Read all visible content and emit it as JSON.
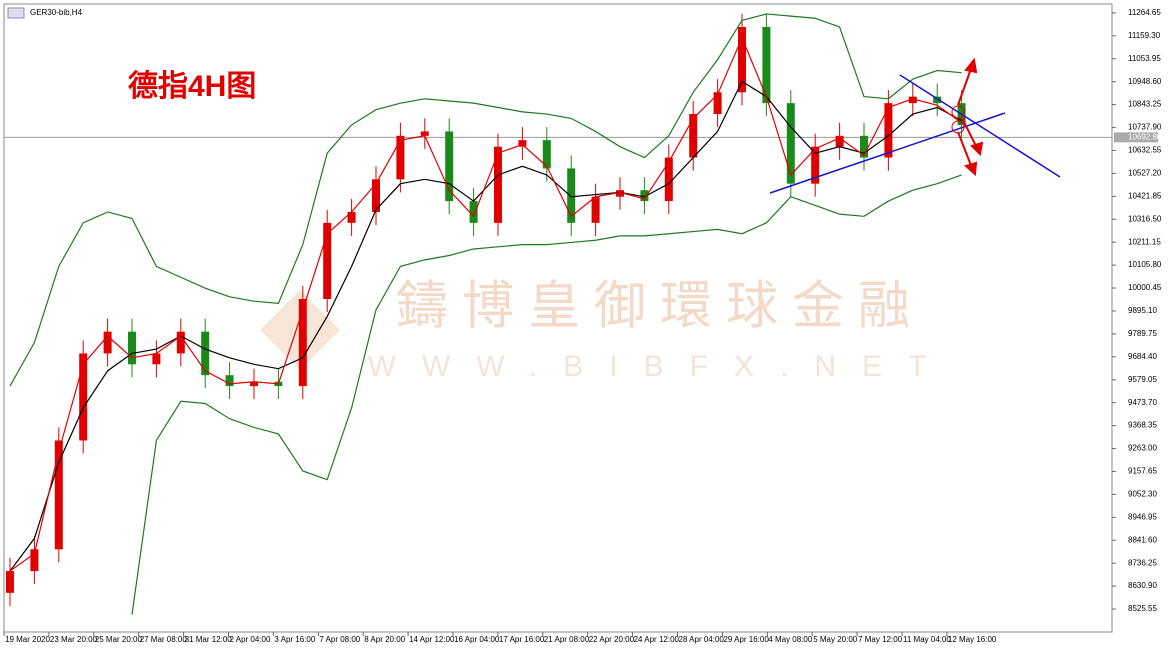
{
  "chart_data": {
    "type": "candlestick",
    "title": "GER30-bib,H4",
    "annotation": "德指4H图",
    "watermark": "鑄博皇御環球金融",
    "watermark_url": "WWW.BIBFX.NET",
    "up_color": "#e00000",
    "down_color": "#1a8a1a",
    "ylim": [
      8420,
      11301
    ],
    "yticks": [
      {
        "value": 11264.65,
        "label": "11264.65"
      },
      {
        "value": 11159.3,
        "label": "11159.30"
      },
      {
        "value": 11053.95,
        "label": "11053.95"
      },
      {
        "value": 10948.6,
        "label": "10948.60"
      },
      {
        "value": 10843.25,
        "label": "10843.25"
      },
      {
        "value": 10737.9,
        "label": "10737.90"
      },
      {
        "value": 10632.55,
        "label": "10632.55"
      },
      {
        "value": 10527.2,
        "label": "10527.20"
      },
      {
        "value": 10421.85,
        "label": "10421.85"
      },
      {
        "value": 10316.5,
        "label": "10316.50"
      },
      {
        "value": 10211.15,
        "label": "10211.15"
      },
      {
        "value": 10105.8,
        "label": "10105.80"
      },
      {
        "value": 10000.45,
        "label": "10000.45"
      },
      {
        "value": 9895.1,
        "label": "9895.10"
      },
      {
        "value": 9789.75,
        "label": "9789.75"
      },
      {
        "value": 9684.4,
        "label": "9684.40"
      },
      {
        "value": 9579.05,
        "label": "9579.05"
      },
      {
        "value": 9473.7,
        "label": "9473.70"
      },
      {
        "value": 9368.35,
        "label": "9368.35"
      },
      {
        "value": 9263,
        "label": "9263.00"
      },
      {
        "value": 9157.65,
        "label": "9157.65"
      },
      {
        "value": 9052.3,
        "label": "9052.30"
      },
      {
        "value": 8946.95,
        "label": "8946.95"
      },
      {
        "value": 8841.6,
        "label": "8841.60"
      },
      {
        "value": 8736.25,
        "label": "8736.25"
      },
      {
        "value": 8630.9,
        "label": "8630.90"
      },
      {
        "value": 8525.55,
        "label": "8525.55"
      }
    ],
    "time_labels": [
      "19 Mar 2020",
      "23 Mar 20:00",
      "25 Mar 20:00",
      "27 Mar 08:00",
      "31 Mar 12:00",
      "2 Apr 04:00",
      "3 Apr 16:00",
      "7 Apr 08:00",
      "8 Apr 20:00",
      "14 Apr 12:00",
      "16 Apr 04:00",
      "17 Apr 16:00",
      "21 Apr 08:00",
      "22 Apr 20:00",
      "24 Apr 12:00",
      "28 Apr 04:00",
      "29 Apr 16:00",
      "4 May 08:00",
      "5 May 20:00",
      "7 May 12:00",
      "11 May 04:00",
      "12 May 16:00"
    ],
    "current_price": 10692.8,
    "current_price_label": "10692.80",
    "open": [
      8600,
      8700,
      8800,
      9300,
      9700,
      9800,
      9650,
      9700,
      9800,
      9600,
      9550,
      9570,
      9550,
      9950,
      10300,
      10350,
      10500,
      10700,
      10720,
      10400,
      10300,
      10650,
      10680,
      10550,
      10300,
      10420,
      10450,
      10400,
      10600,
      10800,
      10900,
      11200,
      10850,
      10480,
      10650,
      10700,
      10600,
      10850,
      10880,
      10850
    ],
    "high": [
      8760,
      8860,
      9360,
      9760,
      9860,
      9860,
      9760,
      9860,
      9860,
      9660,
      9630,
      9630,
      10010,
      10360,
      10410,
      10560,
      10760,
      10780,
      10780,
      10460,
      10710,
      10740,
      10740,
      10610,
      10480,
      10510,
      10510,
      10660,
      10860,
      10960,
      11260,
      11260,
      10910,
      10710,
      10760,
      10760,
      10910,
      10940,
      10940,
      10910
    ],
    "low": [
      8540,
      8640,
      8740,
      9240,
      9640,
      9590,
      9590,
      9640,
      9540,
      9490,
      9490,
      9490,
      9490,
      9890,
      10240,
      10290,
      10440,
      10640,
      10340,
      10240,
      10240,
      10590,
      10490,
      10240,
      10240,
      10360,
      10340,
      10340,
      10540,
      10740,
      10840,
      10790,
      10420,
      10420,
      10590,
      10540,
      10540,
      10790,
      10790,
      10690
    ],
    "close": [
      8700,
      8800,
      9300,
      9700,
      9800,
      9650,
      9700,
      9800,
      9600,
      9550,
      9570,
      9550,
      9950,
      10300,
      10350,
      10500,
      10700,
      10720,
      10400,
      10300,
      10650,
      10680,
      10550,
      10300,
      10420,
      10450,
      10400,
      10600,
      10800,
      10900,
      11200,
      10850,
      10480,
      10650,
      10700,
      10600,
      10850,
      10880,
      10850,
      10750
    ],
    "lines": [
      {
        "color": "#1e7a1e",
        "values": [
          9550,
          9750,
          10100,
          10300,
          10350,
          10320,
          10100,
          10050,
          10000,
          9960,
          9940,
          9930,
          10200,
          10620,
          10750,
          10820,
          10850,
          10870,
          10860,
          10850,
          10830,
          10810,
          10800,
          10780,
          10720,
          10650,
          10600,
          10700,
          10900,
          11050,
          11230,
          11260,
          11250,
          11240,
          11200,
          10880,
          10870,
          10960,
          11000,
          10990
        ]
      },
      {
        "color": "#1e7a1e",
        "values": [
          null,
          null,
          null,
          null,
          null,
          8500,
          9300,
          9480,
          9470,
          9400,
          9360,
          9330,
          9160,
          9120,
          9450,
          9900,
          10100,
          10130,
          10150,
          10180,
          10190,
          10200,
          10200,
          10210,
          10220,
          10240,
          10240,
          10250,
          10260,
          10270,
          10250,
          10300,
          10420,
          10380,
          10340,
          10330,
          10400,
          10450,
          10480,
          10520
        ]
      },
      {
        "color": "#000000",
        "values": [
          8700,
          8850,
          9200,
          9450,
          9620,
          9700,
          9720,
          9780,
          9720,
          9680,
          9650,
          9630,
          9680,
          9870,
          10100,
          10360,
          10480,
          10500,
          10480,
          10400,
          10520,
          10560,
          10520,
          10420,
          10430,
          10440,
          10420,
          10480,
          10600,
          10720,
          10950,
          10880,
          10740,
          10620,
          10650,
          10620,
          10700,
          10800,
          10830,
          10770
        ]
      },
      {
        "color": "#e00000",
        "values": [
          8700,
          8780,
          9250,
          9650,
          9780,
          9680,
          9700,
          9780,
          9620,
          9560,
          9570,
          9560,
          9900,
          10250,
          10350,
          10480,
          10680,
          10700,
          10450,
          10330,
          10620,
          10660,
          10560,
          10330,
          10420,
          10440,
          10410,
          10580,
          10780,
          10890,
          11150,
          10880,
          10520,
          10640,
          10690,
          10610,
          10830,
          10870,
          10840,
          10760
        ]
      }
    ]
  }
}
